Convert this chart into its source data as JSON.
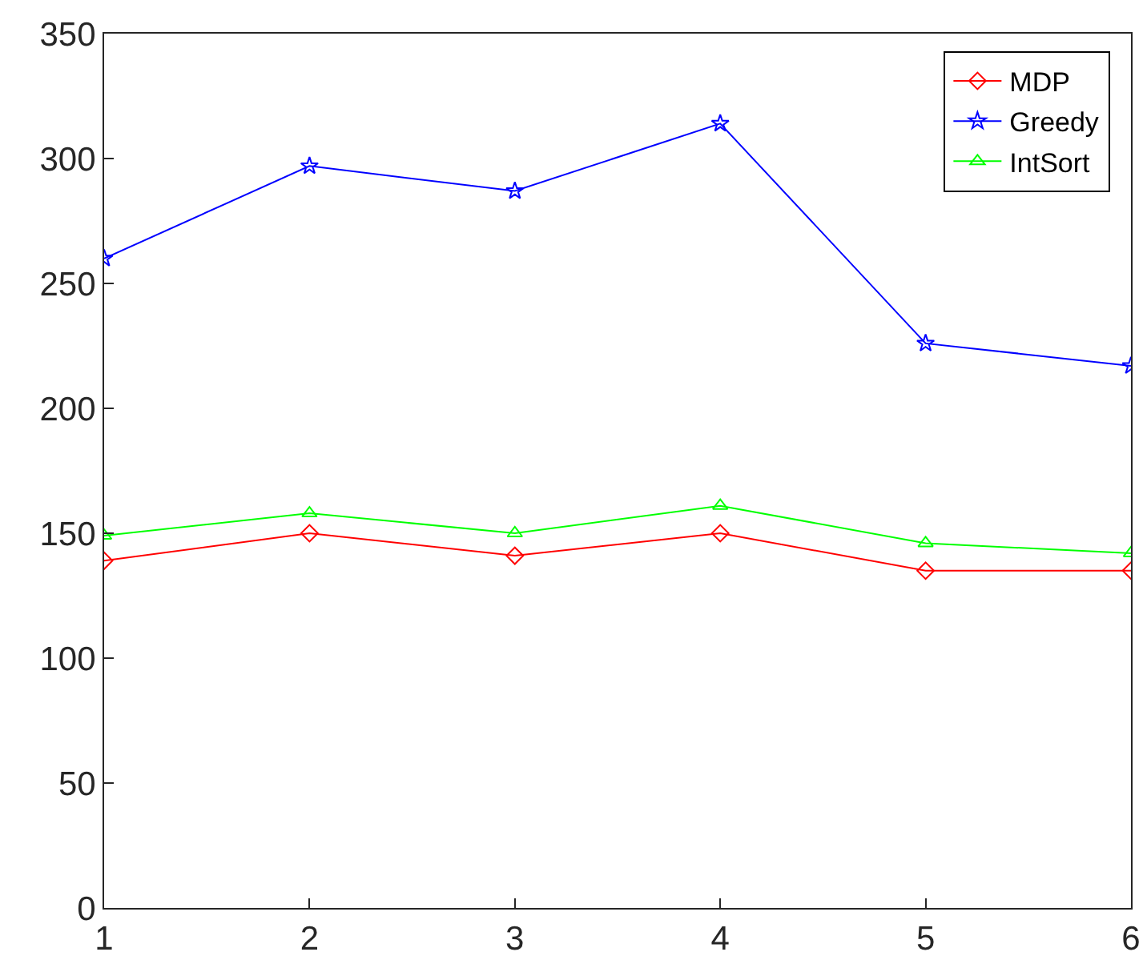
{
  "chart_data": {
    "type": "line",
    "x": [
      1,
      2,
      3,
      4,
      5,
      6
    ],
    "series": [
      {
        "name": "MDP",
        "color": "#ff0000",
        "marker": "diamond",
        "values": [
          139,
          150,
          141,
          150,
          135,
          135
        ]
      },
      {
        "name": "Greedy",
        "color": "#0000ff",
        "marker": "star",
        "values": [
          260,
          297,
          287,
          314,
          226,
          217
        ]
      },
      {
        "name": "IntSort",
        "color": "#00ff00",
        "marker": "triangle",
        "values": [
          149,
          158,
          150,
          161,
          146,
          142
        ]
      }
    ],
    "xlim": [
      1,
      6
    ],
    "xticks": [
      1,
      2,
      3,
      4,
      5,
      6
    ],
    "ylim": [
      0,
      350
    ],
    "yticks": [
      0,
      50,
      100,
      150,
      200,
      250,
      300,
      350
    ],
    "grid": false,
    "legend": "top right",
    "line_style": "solid"
  }
}
